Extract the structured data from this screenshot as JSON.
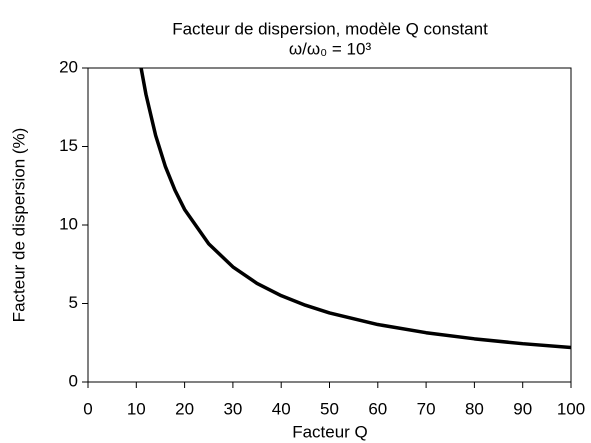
{
  "chart_data": {
    "type": "line",
    "title": "Facteur de dispersion, modèle Q constant",
    "subtitle": "ω/ω₀ = 10³",
    "x_label": "Facteur Q",
    "y_label": "Facteur de dispersion (%)",
    "x": [
      11,
      12,
      14,
      16,
      18,
      20,
      25,
      30,
      35,
      40,
      45,
      50,
      60,
      70,
      80,
      90,
      100
    ],
    "series": [
      {
        "name": "Facteur de dispersion",
        "color": "#000000",
        "values": [
          19.99,
          18.32,
          15.71,
          13.74,
          12.22,
          10.99,
          8.8,
          7.33,
          6.28,
          5.5,
          4.89,
          4.4,
          3.66,
          3.14,
          2.75,
          2.44,
          2.2
        ]
      }
    ],
    "xlim": [
      0,
      100
    ],
    "xticks": [
      0,
      10,
      20,
      30,
      40,
      50,
      60,
      70,
      80,
      90,
      100
    ],
    "ylim": [
      0,
      20
    ],
    "yticks": [
      0,
      5,
      10,
      15,
      20
    ],
    "grid": false
  }
}
